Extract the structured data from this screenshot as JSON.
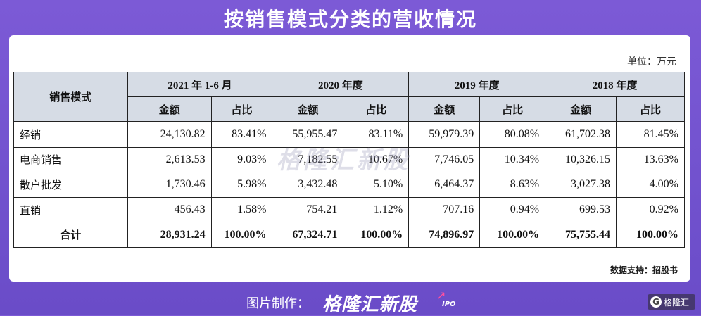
{
  "title": "按销售模式分类的营收情况",
  "unit": "单位：万元",
  "table": {
    "corner": "销售模式",
    "periods": [
      "2021 年 1-6 月",
      "2020 年度",
      "2019 年度",
      "2018 年度"
    ],
    "subheaders": {
      "amount": "金额",
      "ratio": "占比"
    },
    "rows": [
      {
        "name": "经销",
        "cells": [
          "24,130.82",
          "83.41%",
          "55,955.47",
          "83.11%",
          "59,979.39",
          "80.08%",
          "61,702.38",
          "81.45%"
        ]
      },
      {
        "name": "电商销售",
        "cells": [
          "2,613.53",
          "9.03%",
          "7,182.55",
          "10.67%",
          "7,746.05",
          "10.34%",
          "10,326.15",
          "13.63%"
        ]
      },
      {
        "name": "散户批发",
        "cells": [
          "1,730.46",
          "5.98%",
          "3,432.48",
          "5.10%",
          "6,464.37",
          "8.63%",
          "3,027.38",
          "4.00%"
        ]
      },
      {
        "name": "直销",
        "cells": [
          "456.43",
          "1.58%",
          "754.21",
          "1.12%",
          "707.16",
          "0.94%",
          "699.53",
          "0.92%"
        ]
      }
    ],
    "total": {
      "name": "合计",
      "cells": [
        "28,931.24",
        "100.00%",
        "67,324.71",
        "100.00%",
        "74,896.97",
        "100.00%",
        "75,755.44",
        "100.00%"
      ]
    }
  },
  "watermark": "格隆汇新股",
  "source": "数据支持：招股书",
  "footer": {
    "made_by": "图片制作：",
    "brand": "格隆汇新股",
    "ipo": "IPO",
    "logo_mark": "G",
    "logo_text": "格隆汇"
  }
}
